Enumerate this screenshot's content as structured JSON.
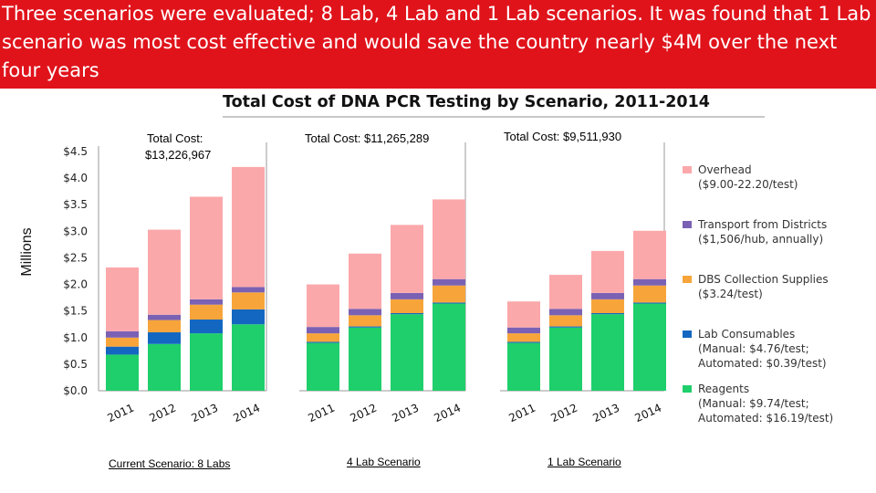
{
  "banner": {
    "text": "Three scenarios were evaluated; 8 Lab, 4 Lab and 1 Lab scenarios. It was found that 1 Lab scenario was most cost effective and would save the country nearly $4M over the next four years",
    "background": "#e0131b"
  },
  "chart_data": {
    "type": "bar",
    "stacked": true,
    "title": "Total Cost of DNA PCR Testing by Scenario, 2011-2014",
    "ylabel": "Millions",
    "ylim": [
      0,
      4.5
    ],
    "yticks": [
      "$0.0",
      "$0.5",
      "$1.0",
      "$1.5",
      "$2.0",
      "$2.5",
      "$3.0",
      "$3.5",
      "$4.0",
      "$4.5"
    ],
    "categories": [
      "2011",
      "2012",
      "2013",
      "2014"
    ],
    "legend_position": "right",
    "series": [
      {
        "name": "Reagents",
        "sub": "(Manual: $9.74/test;",
        "sub2": "Automated: $16.19/test)",
        "color": "#1fcf6b"
      },
      {
        "name": "Lab Consumables",
        "sub": "(Manual: $4.76/test;",
        "sub2": "Automated: $0.39/test)",
        "color": "#1467c1"
      },
      {
        "name": "DBS Collection Supplies",
        "sub": "($3.24/test)",
        "sub2": "",
        "color": "#f7a53b"
      },
      {
        "name": "Transport from Districts",
        "sub": "($1,506/hub, annually)",
        "sub2": "",
        "color": "#7a61b4"
      },
      {
        "name": "Overhead",
        "sub": "($9.00-22.20/test)",
        "sub2": "",
        "color": "#fba8ab"
      }
    ],
    "panels": [
      {
        "total": "Total Cost:",
        "total2": "$13,226,967",
        "scenario": "Current Scenario: 8 Labs",
        "stacks": [
          [
            0.68,
            0.15,
            0.17,
            0.12,
            1.2
          ],
          [
            0.88,
            0.22,
            0.23,
            0.1,
            1.6
          ],
          [
            1.08,
            0.26,
            0.28,
            0.1,
            1.93
          ],
          [
            1.25,
            0.28,
            0.32,
            0.1,
            2.26
          ]
        ]
      },
      {
        "total": "Total Cost: $11,265,289",
        "total2": "",
        "scenario": "4 Lab Scenario",
        "stacks": [
          [
            0.9,
            0.02,
            0.16,
            0.12,
            0.8
          ],
          [
            1.19,
            0.02,
            0.21,
            0.12,
            1.04
          ],
          [
            1.44,
            0.02,
            0.26,
            0.12,
            1.28
          ],
          [
            1.64,
            0.02,
            0.32,
            0.12,
            1.5
          ]
        ]
      },
      {
        "total": "Total Cost: $9,511,930",
        "total2": "",
        "scenario": "1 Lab Scenario",
        "stacks": [
          [
            0.9,
            0.02,
            0.16,
            0.11,
            0.49
          ],
          [
            1.19,
            0.02,
            0.21,
            0.12,
            0.64
          ],
          [
            1.44,
            0.02,
            0.26,
            0.12,
            0.79
          ],
          [
            1.64,
            0.02,
            0.32,
            0.12,
            0.91
          ]
        ]
      }
    ]
  }
}
